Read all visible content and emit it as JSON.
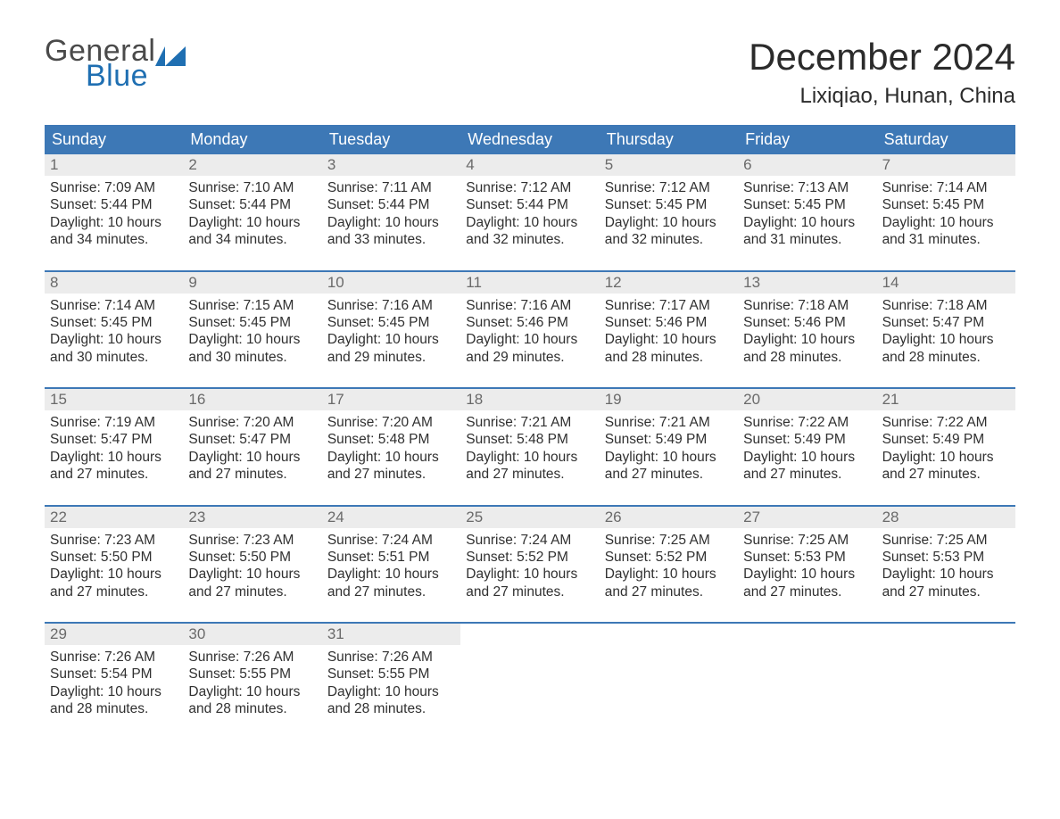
{
  "logo": {
    "word1": "General",
    "word2": "Blue"
  },
  "title": "December 2024",
  "location": "Lixiqiao, Hunan, China",
  "colors": {
    "header_blue": "#3d78b6",
    "logo_blue": "#1f6fb2",
    "date_bg": "#ececec",
    "date_text": "#6a6a6a",
    "body_text": "#303030",
    "background": "#ffffff"
  },
  "font": {
    "family": "Arial",
    "title_size_pt": 32,
    "location_size_pt": 18,
    "dow_size_pt": 14,
    "body_size_pt": 12
  },
  "calendar": {
    "days_of_week": [
      "Sunday",
      "Monday",
      "Tuesday",
      "Wednesday",
      "Thursday",
      "Friday",
      "Saturday"
    ],
    "weeks": [
      [
        {
          "date": "1",
          "sunrise": "7:09 AM",
          "sunset": "5:44 PM",
          "daylight": "10 hours and 34 minutes."
        },
        {
          "date": "2",
          "sunrise": "7:10 AM",
          "sunset": "5:44 PM",
          "daylight": "10 hours and 34 minutes."
        },
        {
          "date": "3",
          "sunrise": "7:11 AM",
          "sunset": "5:44 PM",
          "daylight": "10 hours and 33 minutes."
        },
        {
          "date": "4",
          "sunrise": "7:12 AM",
          "sunset": "5:44 PM",
          "daylight": "10 hours and 32 minutes."
        },
        {
          "date": "5",
          "sunrise": "7:12 AM",
          "sunset": "5:45 PM",
          "daylight": "10 hours and 32 minutes."
        },
        {
          "date": "6",
          "sunrise": "7:13 AM",
          "sunset": "5:45 PM",
          "daylight": "10 hours and 31 minutes."
        },
        {
          "date": "7",
          "sunrise": "7:14 AM",
          "sunset": "5:45 PM",
          "daylight": "10 hours and 31 minutes."
        }
      ],
      [
        {
          "date": "8",
          "sunrise": "7:14 AM",
          "sunset": "5:45 PM",
          "daylight": "10 hours and 30 minutes."
        },
        {
          "date": "9",
          "sunrise": "7:15 AM",
          "sunset": "5:45 PM",
          "daylight": "10 hours and 30 minutes."
        },
        {
          "date": "10",
          "sunrise": "7:16 AM",
          "sunset": "5:45 PM",
          "daylight": "10 hours and 29 minutes."
        },
        {
          "date": "11",
          "sunrise": "7:16 AM",
          "sunset": "5:46 PM",
          "daylight": "10 hours and 29 minutes."
        },
        {
          "date": "12",
          "sunrise": "7:17 AM",
          "sunset": "5:46 PM",
          "daylight": "10 hours and 28 minutes."
        },
        {
          "date": "13",
          "sunrise": "7:18 AM",
          "sunset": "5:46 PM",
          "daylight": "10 hours and 28 minutes."
        },
        {
          "date": "14",
          "sunrise": "7:18 AM",
          "sunset": "5:47 PM",
          "daylight": "10 hours and 28 minutes."
        }
      ],
      [
        {
          "date": "15",
          "sunrise": "7:19 AM",
          "sunset": "5:47 PM",
          "daylight": "10 hours and 27 minutes."
        },
        {
          "date": "16",
          "sunrise": "7:20 AM",
          "sunset": "5:47 PM",
          "daylight": "10 hours and 27 minutes."
        },
        {
          "date": "17",
          "sunrise": "7:20 AM",
          "sunset": "5:48 PM",
          "daylight": "10 hours and 27 minutes."
        },
        {
          "date": "18",
          "sunrise": "7:21 AM",
          "sunset": "5:48 PM",
          "daylight": "10 hours and 27 minutes."
        },
        {
          "date": "19",
          "sunrise": "7:21 AM",
          "sunset": "5:49 PM",
          "daylight": "10 hours and 27 minutes."
        },
        {
          "date": "20",
          "sunrise": "7:22 AM",
          "sunset": "5:49 PM",
          "daylight": "10 hours and 27 minutes."
        },
        {
          "date": "21",
          "sunrise": "7:22 AM",
          "sunset": "5:49 PM",
          "daylight": "10 hours and 27 minutes."
        }
      ],
      [
        {
          "date": "22",
          "sunrise": "7:23 AM",
          "sunset": "5:50 PM",
          "daylight": "10 hours and 27 minutes."
        },
        {
          "date": "23",
          "sunrise": "7:23 AM",
          "sunset": "5:50 PM",
          "daylight": "10 hours and 27 minutes."
        },
        {
          "date": "24",
          "sunrise": "7:24 AM",
          "sunset": "5:51 PM",
          "daylight": "10 hours and 27 minutes."
        },
        {
          "date": "25",
          "sunrise": "7:24 AM",
          "sunset": "5:52 PM",
          "daylight": "10 hours and 27 minutes."
        },
        {
          "date": "26",
          "sunrise": "7:25 AM",
          "sunset": "5:52 PM",
          "daylight": "10 hours and 27 minutes."
        },
        {
          "date": "27",
          "sunrise": "7:25 AM",
          "sunset": "5:53 PM",
          "daylight": "10 hours and 27 minutes."
        },
        {
          "date": "28",
          "sunrise": "7:25 AM",
          "sunset": "5:53 PM",
          "daylight": "10 hours and 27 minutes."
        }
      ],
      [
        {
          "date": "29",
          "sunrise": "7:26 AM",
          "sunset": "5:54 PM",
          "daylight": "10 hours and 28 minutes."
        },
        {
          "date": "30",
          "sunrise": "7:26 AM",
          "sunset": "5:55 PM",
          "daylight": "10 hours and 28 minutes."
        },
        {
          "date": "31",
          "sunrise": "7:26 AM",
          "sunset": "5:55 PM",
          "daylight": "10 hours and 28 minutes."
        },
        null,
        null,
        null,
        null
      ]
    ],
    "labels": {
      "sunrise": "Sunrise:",
      "sunset": "Sunset:",
      "daylight": "Daylight:"
    }
  }
}
